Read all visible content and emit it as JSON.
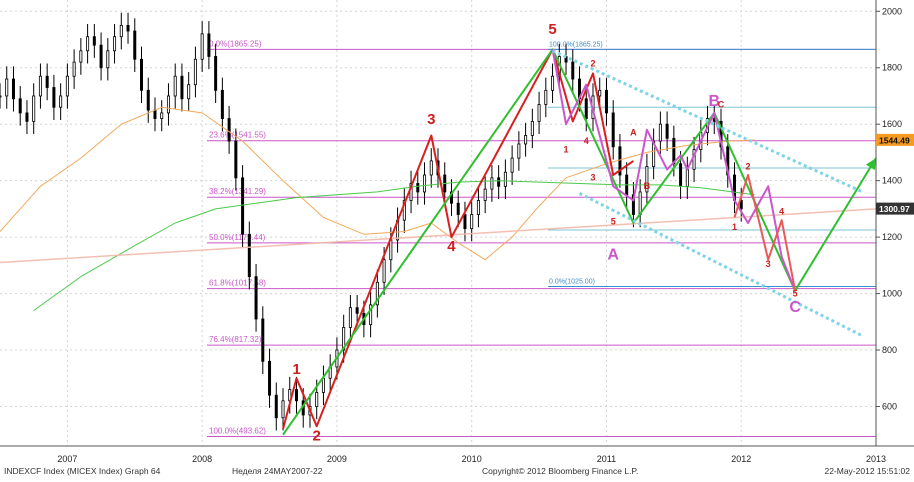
{
  "footer": {
    "left": "INDEXCF Index (MICEX Index) Graph 64",
    "period": "Неделя 24MAY2007-22",
    "copyright": "Copyright© 2012 Bloomberg Finance L.P.",
    "timestamp": "22-May-2012 15:51:02"
  },
  "chart_data": {
    "type": "line",
    "title": "",
    "xlabel": "",
    "ylabel": "",
    "xlim": [
      2007.0,
      2013.5
    ],
    "ylim": [
      460,
      2040
    ],
    "grid": true,
    "y_axis_side": "right",
    "y_ticks": [
      600,
      800,
      1000,
      1200,
      1400,
      1600,
      1800,
      2000
    ],
    "y_tick_labels": [
      "600",
      "800",
      "1000",
      "1200",
      "1400",
      "1600",
      "1800",
      "2000"
    ],
    "x_tick_labels": [
      {
        "x": 2007.5,
        "label": "2007"
      },
      {
        "x": 2008.5,
        "label": "2008"
      },
      {
        "x": 2009.5,
        "label": "2009"
      },
      {
        "x": 2010.5,
        "label": "2010"
      },
      {
        "x": 2011.5,
        "label": "2011"
      },
      {
        "x": 2012.5,
        "label": "2012"
      },
      {
        "x": 2013.5,
        "label": "2013"
      }
    ],
    "price_markers": [
      {
        "value": 1544.49,
        "label": "1544.49",
        "color": "#f59a23"
      },
      {
        "value": 1300.97,
        "label": "1300.97",
        "color": "#333333"
      }
    ],
    "fib_levels": [
      {
        "value": 1865.25,
        "label": "0.0%(1865.25)"
      },
      {
        "value": 1541.55,
        "label": "23.6%(1541.55)"
      },
      {
        "value": 1341.29,
        "label": "38.2%(1341.29)"
      },
      {
        "value": 1179.44,
        "label": "50.0%(1179.44)"
      },
      {
        "value": 1017.58,
        "label": "61.8%(1017.58)"
      },
      {
        "value": 817.32,
        "label": "76.4%(817.32)"
      },
      {
        "value": 493.62,
        "label": "100.0%(493.62)"
      }
    ],
    "fib_right": [
      {
        "value": 1865.25,
        "label": "100.0%(1865.25)"
      },
      {
        "value": 1025.0,
        "label": "0.0%(1025.00)"
      }
    ],
    "series": [
      {
        "kind": "candles",
        "color": "#000000",
        "points": [
          [
            2007.0,
            1700
          ],
          [
            2007.05,
            1760
          ],
          [
            2007.1,
            1690
          ],
          [
            2007.15,
            1640
          ],
          [
            2007.2,
            1610
          ],
          [
            2007.25,
            1700
          ],
          [
            2007.3,
            1770
          ],
          [
            2007.35,
            1730
          ],
          [
            2007.4,
            1660
          ],
          [
            2007.45,
            1700
          ],
          [
            2007.5,
            1770
          ],
          [
            2007.55,
            1820
          ],
          [
            2007.6,
            1860
          ],
          [
            2007.65,
            1910
          ],
          [
            2007.7,
            1880
          ],
          [
            2007.75,
            1800
          ],
          [
            2007.8,
            1860
          ],
          [
            2007.85,
            1910
          ],
          [
            2007.9,
            1950
          ],
          [
            2007.95,
            1930
          ],
          [
            2008.0,
            1830
          ],
          [
            2008.05,
            1720
          ],
          [
            2008.1,
            1650
          ],
          [
            2008.15,
            1620
          ],
          [
            2008.2,
            1640
          ],
          [
            2008.25,
            1700
          ],
          [
            2008.3,
            1770
          ],
          [
            2008.35,
            1690
          ],
          [
            2008.4,
            1740
          ],
          [
            2008.45,
            1830
          ],
          [
            2008.5,
            1920
          ],
          [
            2008.55,
            1840
          ],
          [
            2008.6,
            1720
          ],
          [
            2008.65,
            1620
          ],
          [
            2008.7,
            1540
          ],
          [
            2008.75,
            1410
          ],
          [
            2008.8,
            1210
          ],
          [
            2008.85,
            1060
          ],
          [
            2008.9,
            910
          ],
          [
            2008.95,
            760
          ],
          [
            2009.0,
            640
          ],
          [
            2009.05,
            560
          ],
          [
            2009.1,
            620
          ],
          [
            2009.15,
            660
          ],
          [
            2009.2,
            620
          ],
          [
            2009.25,
            570
          ],
          [
            2009.3,
            600
          ],
          [
            2009.35,
            650
          ],
          [
            2009.4,
            700
          ],
          [
            2009.45,
            740
          ],
          [
            2009.5,
            800
          ],
          [
            2009.55,
            880
          ],
          [
            2009.6,
            950
          ],
          [
            2009.65,
            930
          ],
          [
            2009.7,
            890
          ],
          [
            2009.75,
            960
          ],
          [
            2009.8,
            1040
          ],
          [
            2009.85,
            1120
          ],
          [
            2009.9,
            1190
          ],
          [
            2009.95,
            1260
          ],
          [
            2010.0,
            1330
          ],
          [
            2010.05,
            1390
          ],
          [
            2010.1,
            1360
          ],
          [
            2010.15,
            1420
          ],
          [
            2010.2,
            1470
          ],
          [
            2010.25,
            1420
          ],
          [
            2010.3,
            1360
          ],
          [
            2010.35,
            1320
          ],
          [
            2010.4,
            1280
          ],
          [
            2010.45,
            1230
          ],
          [
            2010.5,
            1280
          ],
          [
            2010.55,
            1330
          ],
          [
            2010.6,
            1370
          ],
          [
            2010.65,
            1410
          ],
          [
            2010.7,
            1380
          ],
          [
            2010.75,
            1430
          ],
          [
            2010.8,
            1480
          ],
          [
            2010.85,
            1530
          ],
          [
            2010.9,
            1560
          ],
          [
            2010.95,
            1610
          ],
          [
            2011.0,
            1670
          ],
          [
            2011.05,
            1720
          ],
          [
            2011.1,
            1770
          ],
          [
            2011.15,
            1840
          ],
          [
            2011.2,
            1820
          ],
          [
            2011.25,
            1760
          ],
          [
            2011.3,
            1690
          ],
          [
            2011.35,
            1620
          ],
          [
            2011.4,
            1700
          ],
          [
            2011.45,
            1720
          ],
          [
            2011.5,
            1640
          ],
          [
            2011.55,
            1520
          ],
          [
            2011.6,
            1420
          ],
          [
            2011.65,
            1350
          ],
          [
            2011.7,
            1280
          ],
          [
            2011.75,
            1360
          ],
          [
            2011.8,
            1450
          ],
          [
            2011.85,
            1540
          ],
          [
            2011.9,
            1600
          ],
          [
            2011.95,
            1550
          ],
          [
            2012.0,
            1460
          ],
          [
            2012.05,
            1380
          ],
          [
            2012.1,
            1440
          ],
          [
            2012.15,
            1510
          ],
          [
            2012.2,
            1570
          ],
          [
            2012.25,
            1620
          ],
          [
            2012.3,
            1610
          ],
          [
            2012.35,
            1520
          ],
          [
            2012.4,
            1420
          ],
          [
            2012.45,
            1330
          ],
          [
            2012.5,
            1300
          ]
        ]
      },
      {
        "kind": "ma",
        "name": "",
        "color": "#f3a95b",
        "points": [
          [
            2007.0,
            1220
          ],
          [
            2007.3,
            1380
          ],
          [
            2007.6,
            1480
          ],
          [
            2007.9,
            1600
          ],
          [
            2008.2,
            1660
          ],
          [
            2008.5,
            1640
          ],
          [
            2008.8,
            1540
          ],
          [
            2009.1,
            1400
          ],
          [
            2009.4,
            1270
          ],
          [
            2009.7,
            1210
          ],
          [
            2010.0,
            1220
          ],
          [
            2010.2,
            1250
          ],
          [
            2010.4,
            1180
          ],
          [
            2010.6,
            1120
          ],
          [
            2010.8,
            1200
          ],
          [
            2011.0,
            1310
          ],
          [
            2011.2,
            1410
          ],
          [
            2011.5,
            1460
          ],
          [
            2011.8,
            1500
          ],
          [
            2012.1,
            1525
          ],
          [
            2012.4,
            1540
          ],
          [
            2012.6,
            1544
          ]
        ]
      },
      {
        "kind": "ma",
        "name": "",
        "color": "#4cc94c",
        "points": [
          [
            2007.25,
            940
          ],
          [
            2007.6,
            1060
          ],
          [
            2008.0,
            1170
          ],
          [
            2008.3,
            1250
          ],
          [
            2008.6,
            1300
          ],
          [
            2008.9,
            1320
          ],
          [
            2009.2,
            1340
          ],
          [
            2009.5,
            1350
          ],
          [
            2009.8,
            1360
          ],
          [
            2010.1,
            1380
          ],
          [
            2010.4,
            1395
          ],
          [
            2010.7,
            1400
          ],
          [
            2011.0,
            1395
          ],
          [
            2011.3,
            1390
          ],
          [
            2011.6,
            1385
          ],
          [
            2011.9,
            1385
          ],
          [
            2012.2,
            1375
          ],
          [
            2012.6,
            1350
          ]
        ]
      },
      {
        "kind": "trend",
        "name": "",
        "color": "#f2b8a8",
        "points": [
          [
            2007.0,
            1110
          ],
          [
            2013.5,
            1300
          ]
        ]
      },
      {
        "kind": "wave",
        "name": "",
        "color": "#d92020",
        "points": [
          [
            2009.1,
            520
          ],
          [
            2009.2,
            700
          ],
          [
            2009.35,
            530
          ],
          [
            2010.2,
            1560
          ],
          [
            2010.35,
            1200
          ],
          [
            2011.1,
            1865
          ],
          [
            2011.25,
            1610
          ],
          [
            2011.4,
            1780
          ],
          [
            2011.55,
            1420
          ],
          [
            2011.7,
            1470
          ]
        ]
      },
      {
        "kind": "wave",
        "name": "",
        "color": "#2fbf2f",
        "points": [
          [
            2009.1,
            500
          ],
          [
            2011.1,
            1865
          ],
          [
            2011.7,
            1250
          ],
          [
            2012.3,
            1640
          ],
          [
            2012.9,
            1010
          ],
          [
            2013.5,
            1480
          ]
        ]
      },
      {
        "kind": "wave",
        "name": "",
        "color": "#c957c9",
        "points": [
          [
            2011.1,
            1865
          ],
          [
            2011.2,
            1600
          ],
          [
            2011.35,
            1740
          ],
          [
            2011.55,
            1380
          ],
          [
            2011.7,
            1330
          ],
          [
            2011.8,
            1580
          ],
          [
            2011.95,
            1440
          ],
          [
            2012.05,
            1490
          ],
          [
            2012.1,
            1440
          ],
          [
            2012.3,
            1640
          ],
          [
            2012.45,
            1330
          ],
          [
            2012.55,
            1250
          ],
          [
            2012.7,
            1380
          ],
          [
            2012.8,
            1130
          ],
          [
            2012.9,
            1010
          ]
        ]
      },
      {
        "kind": "wave",
        "name": "",
        "color": "#e85a5a",
        "points": [
          [
            2012.45,
            1270
          ],
          [
            2012.55,
            1420
          ],
          [
            2012.7,
            1120
          ],
          [
            2012.8,
            1260
          ],
          [
            2012.9,
            1010
          ]
        ]
      },
      {
        "kind": "channel",
        "name": "",
        "color": "#7fd3e6",
        "points": [
          [
            2011.1,
            1860
          ],
          [
            2013.4,
            1360
          ]
        ]
      },
      {
        "kind": "channel",
        "name": "",
        "color": "#7fd3e6",
        "points": [
          [
            2011.3,
            1355
          ],
          [
            2013.4,
            850
          ]
        ]
      }
    ],
    "annotations": [
      {
        "x": 2011.1,
        "y": 1920,
        "text": "5",
        "color": "#cc2020",
        "size": 15
      },
      {
        "x": 2010.2,
        "y": 1600,
        "text": "3",
        "color": "#cc2020",
        "size": 15
      },
      {
        "x": 2010.35,
        "y": 1150,
        "text": "4",
        "color": "#cc2020",
        "size": 15
      },
      {
        "x": 2009.2,
        "y": 715,
        "text": "1",
        "color": "#cc2020",
        "size": 15
      },
      {
        "x": 2009.35,
        "y": 480,
        "text": "2",
        "color": "#cc2020",
        "size": 15
      },
      {
        "x": 2011.55,
        "y": 1120,
        "text": "A",
        "color": "#c957c9",
        "size": 16
      },
      {
        "x": 2012.3,
        "y": 1665,
        "text": "B",
        "color": "#c957c9",
        "size": 16
      },
      {
        "x": 2012.9,
        "y": 935,
        "text": "C",
        "color": "#c957c9",
        "size": 16
      },
      {
        "x": 2011.4,
        "y": 1805,
        "text": "2",
        "color": "#cc2020",
        "size": 9
      },
      {
        "x": 2011.2,
        "y": 1500,
        "text": "1",
        "color": "#cc2020",
        "size": 9
      },
      {
        "x": 2011.35,
        "y": 1530,
        "text": "4",
        "color": "#cc2020",
        "size": 9
      },
      {
        "x": 2011.4,
        "y": 1400,
        "text": "3",
        "color": "#cc2020",
        "size": 9
      },
      {
        "x": 2011.55,
        "y": 1245,
        "text": "5",
        "color": "#cc2020",
        "size": 9
      },
      {
        "x": 2011.7,
        "y": 1560,
        "text": "A",
        "color": "#cc2020",
        "size": 9
      },
      {
        "x": 2011.8,
        "y": 1370,
        "text": "B",
        "color": "#cc2020",
        "size": 9
      },
      {
        "x": 2012.35,
        "y": 1660,
        "text": "C",
        "color": "#cc2020",
        "size": 9
      },
      {
        "x": 2012.45,
        "y": 1225,
        "text": "1",
        "color": "#cc2020",
        "size": 9
      },
      {
        "x": 2012.55,
        "y": 1440,
        "text": "2",
        "color": "#cc2020",
        "size": 9
      },
      {
        "x": 2012.7,
        "y": 1095,
        "text": "3",
        "color": "#cc2020",
        "size": 9
      },
      {
        "x": 2012.8,
        "y": 1280,
        "text": "4",
        "color": "#cc2020",
        "size": 9
      },
      {
        "x": 2012.9,
        "y": 990,
        "text": "5",
        "color": "#cc2020",
        "size": 9
      }
    ]
  }
}
